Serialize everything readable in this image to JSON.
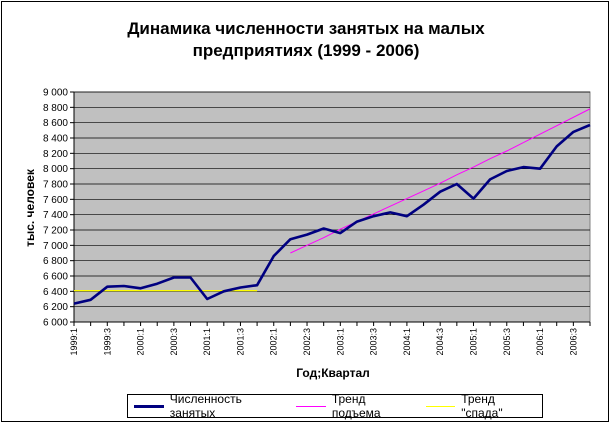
{
  "title_line1": "Динамика численности занятых на малых",
  "title_line2": "предприятиях (1999 - 2006)",
  "ylabel": "тыс. человек",
  "xlabel": "Год;Квартал",
  "legend": {
    "employment": "Численность занятых",
    "trend_up": "Тренд подъема",
    "trend_down": "Тренд \"спада\""
  },
  "colors": {
    "employment": "#000080",
    "trend_up": "#ff00ff",
    "trend_down": "#ffff00",
    "plot_bg": "#c0c0c0"
  },
  "chart_data": {
    "type": "line",
    "title": "Динамика численности занятых на малых предприятиях (1999 - 2006)",
    "xlabel": "Год;Квартал",
    "ylabel": "тыс. человек",
    "ylim": [
      6000,
      9000
    ],
    "y_ticks": [
      "6 000",
      "6 200",
      "6 400",
      "6 600",
      "6 800",
      "7 000",
      "7 200",
      "7 400",
      "7 600",
      "7 800",
      "8 000",
      "8 200",
      "8 400",
      "8 600",
      "8 800",
      "9 000"
    ],
    "x_tick_labels": [
      "1999:1",
      "1999:3",
      "2000:1",
      "2000:3",
      "2001:1",
      "2001:3",
      "2002:1",
      "2002:3",
      "2003:1",
      "2003:3",
      "2004:1",
      "2004:3",
      "2005:1",
      "2005:3",
      "2006:1",
      "2006:3"
    ],
    "grid": true,
    "legend_position": "bottom",
    "series": [
      {
        "name": "Численность занятых",
        "values": [
          6240,
          6290,
          6460,
          6470,
          6440,
          6500,
          6580,
          6580,
          6300,
          6400,
          6450,
          6480,
          6860,
          7080,
          7140,
          7220,
          7160,
          7310,
          7380,
          7430,
          7380,
          7530,
          7700,
          7800,
          7610,
          7860,
          7970,
          8020,
          8000,
          8290,
          8480,
          8570
        ]
      },
      {
        "name": "Тренд подъема",
        "values": [
          6900,
          7000,
          7100,
          7210,
          7310,
          7410,
          7510,
          7610,
          7710,
          7810,
          7920,
          8020,
          8130,
          8230,
          8340
        ]
      },
      {
        "name": "Тренд \"спада\"",
        "values": [
          6410,
          6410,
          6410,
          6410,
          6410,
          6410,
          6410,
          6410,
          6410,
          6410,
          6410,
          6410
        ]
      }
    ]
  }
}
